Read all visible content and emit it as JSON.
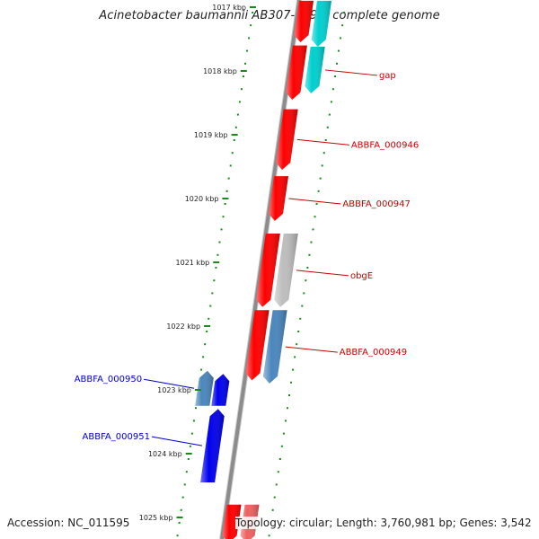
{
  "title": "Acinetobacter baumannii AB307-0294, complete genome",
  "accession_text": "Accession: NC_011595",
  "stats_text": "Topology: circular; Length: 3,760,981 bp; Genes: 3,542",
  "colors": {
    "backbone": "#8c8c8c",
    "tick": "#1a8a1a",
    "red_gene": "#ff0000",
    "pink_gene": "#f06060",
    "cyan_gene": "#00d0d0",
    "grey_gene": "#bdbdbd",
    "steel_gene": "#4a86bd",
    "blue_gene": "#0000ee",
    "label_right": "#cc0000",
    "label_left": "#0000cc"
  },
  "scale": {
    "labels": [
      "1017 kbp",
      "1018 kbp",
      "1019 kbp",
      "1020 kbp",
      "1021 kbp",
      "1022 kbp",
      "1023 kbp",
      "1024 kbp",
      "1025 kbp"
    ]
  },
  "genes": [
    {
      "id": "g-top-red",
      "color": "red_gene",
      "track": 1,
      "start_kbp": 1016.9,
      "end_kbp": 1017.55,
      "strand": "-"
    },
    {
      "id": "g-top-cyan",
      "color": "cyan_gene",
      "track": 2,
      "start_kbp": 1016.9,
      "end_kbp": 1017.62,
      "strand": "-"
    },
    {
      "id": "g-gap",
      "color": "cyan_gene",
      "track": 2,
      "start_kbp": 1017.62,
      "end_kbp": 1018.35,
      "strand": "-",
      "label": "gap"
    },
    {
      "id": "g-red-a",
      "color": "red_gene",
      "track": 1,
      "start_kbp": 1017.6,
      "end_kbp": 1018.45,
      "strand": "-"
    },
    {
      "id": "g-abbfa946",
      "color": "red_gene",
      "track": 1,
      "start_kbp": 1018.6,
      "end_kbp": 1019.55,
      "strand": "-",
      "label": "ABBFA_000946"
    },
    {
      "id": "g-abbfa947",
      "color": "red_gene",
      "track": 1,
      "start_kbp": 1019.65,
      "end_kbp": 1020.35,
      "strand": "-",
      "label": "ABBFA_000947"
    },
    {
      "id": "g-red-b",
      "color": "red_gene",
      "track": 1,
      "start_kbp": 1020.55,
      "end_kbp": 1021.7,
      "strand": "-"
    },
    {
      "id": "g-obge",
      "color": "grey_gene",
      "track": 2,
      "start_kbp": 1020.55,
      "end_kbp": 1021.7,
      "strand": "-",
      "label": "obgE"
    },
    {
      "id": "g-red-c",
      "color": "red_gene",
      "track": 1,
      "start_kbp": 1021.75,
      "end_kbp": 1022.85,
      "strand": "-"
    },
    {
      "id": "g-abbfa949",
      "color": "steel_gene",
      "track": 2,
      "start_kbp": 1021.75,
      "end_kbp": 1022.9,
      "strand": "-",
      "label": "ABBFA_000949"
    },
    {
      "id": "g-abbfa950",
      "color": "steel_gene",
      "track": -2,
      "start_kbp": 1022.7,
      "end_kbp": 1023.25,
      "strand": "+",
      "label": "ABBFA_000950"
    },
    {
      "id": "g-blue-a",
      "color": "blue_gene",
      "track": -1,
      "start_kbp": 1022.75,
      "end_kbp": 1023.25,
      "strand": "+"
    },
    {
      "id": "g-abbfa951",
      "color": "blue_gene",
      "track": -1,
      "start_kbp": 1023.3,
      "end_kbp": 1024.45,
      "strand": "+",
      "label": "ABBFA_000951"
    },
    {
      "id": "g-bottom-red",
      "color": "red_gene",
      "track": 1,
      "start_kbp": 1024.8,
      "end_kbp": 1025.4,
      "strand": "-"
    },
    {
      "id": "g-bottom-pink",
      "color": "pink_gene",
      "track": 2,
      "start_kbp": 1024.8,
      "end_kbp": 1025.4,
      "strand": "-"
    }
  ]
}
